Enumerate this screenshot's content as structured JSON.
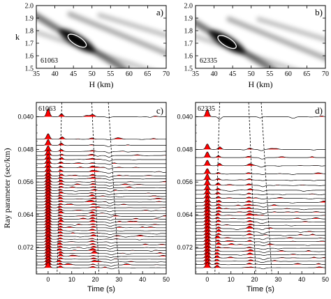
{
  "chart_data": [
    {
      "panel": "a)",
      "type": "heatmap",
      "station": "61063",
      "xlabel": "H (km)",
      "ylabel": "k",
      "xlim": [
        35,
        70
      ],
      "ylim": [
        1.5,
        2.0
      ],
      "xticks": [
        "35",
        "40",
        "45",
        "50",
        "55",
        "60",
        "65",
        "70"
      ],
      "yticks": [
        "1.5",
        "1.6",
        "1.7",
        "1.8",
        "1.9",
        "2.0"
      ],
      "optimum": {
        "H": 46.0,
        "k": 1.72
      },
      "colormap": [
        "#ffffff",
        "#000000"
      ]
    },
    {
      "panel": "b)",
      "type": "heatmap",
      "station": "62335",
      "xlabel": "H (km)",
      "ylabel": "",
      "xlim": [
        35,
        70
      ],
      "ylim": [
        1.5,
        2.0
      ],
      "xticks": [
        "35",
        "40",
        "45",
        "50",
        "55",
        "60",
        "65",
        "70"
      ],
      "yticks": [
        "1.5",
        "1.6",
        "1.7",
        "1.8",
        "1.9",
        "2.0"
      ],
      "optimum": {
        "H": 43.5,
        "k": 1.71
      },
      "colormap": [
        "#ffffff",
        "#000000"
      ]
    },
    {
      "panel": "c)",
      "type": "line",
      "station": "61063",
      "xlabel": "Time (s)",
      "ylabel": "Ray parameter (sec/km)",
      "xlim": [
        -5,
        50
      ],
      "ylim": [
        0.0365,
        0.0785
      ],
      "xticks": [
        "0",
        "10",
        "20",
        "30",
        "40",
        "50"
      ],
      "yticks": [
        "0.040",
        "0.048",
        "0.056",
        "0.064",
        "0.072"
      ],
      "ray_parameters": [
        0.04,
        0.0455,
        0.047,
        0.0485,
        0.0495,
        0.0505,
        0.0515,
        0.0525,
        0.0535,
        0.0545,
        0.0552,
        0.056,
        0.0567,
        0.0574,
        0.0581,
        0.0588,
        0.0595,
        0.0602,
        0.0609,
        0.0616,
        0.0623,
        0.063,
        0.0637,
        0.0644,
        0.0651,
        0.0658,
        0.0665,
        0.0672,
        0.0679,
        0.0686,
        0.0693,
        0.07,
        0.0707,
        0.0714,
        0.0721,
        0.0728,
        0.0735,
        0.0742,
        0.0749,
        0.0756,
        0.0763,
        0.077
      ],
      "phase_times": [
        5.8,
        18.5,
        25.5
      ],
      "positive_fill": "#ff0000"
    },
    {
      "panel": "d)",
      "type": "line",
      "station": "62335",
      "xlabel": "Time (s)",
      "ylabel": "",
      "xlim": [
        -5,
        50
      ],
      "ylim": [
        0.0365,
        0.0785
      ],
      "xticks": [
        "0",
        "10",
        "20",
        "30",
        "40",
        "50"
      ],
      "yticks": [
        "0.040",
        "0.048",
        "0.056",
        "0.064",
        "0.072"
      ],
      "ray_parameters": [
        0.04,
        0.048,
        0.05,
        0.052,
        0.054,
        0.0555,
        0.0568,
        0.058,
        0.059,
        0.06,
        0.061,
        0.0618,
        0.0626,
        0.0634,
        0.0642,
        0.065,
        0.0658,
        0.0666,
        0.0674,
        0.0682,
        0.069,
        0.0698,
        0.0706,
        0.0714,
        0.0722,
        0.073,
        0.0738,
        0.0746,
        0.0754,
        0.0762,
        0.077
      ],
      "phase_times": [
        5.2,
        17.5,
        22.8
      ],
      "positive_fill": "#ff0000"
    }
  ]
}
